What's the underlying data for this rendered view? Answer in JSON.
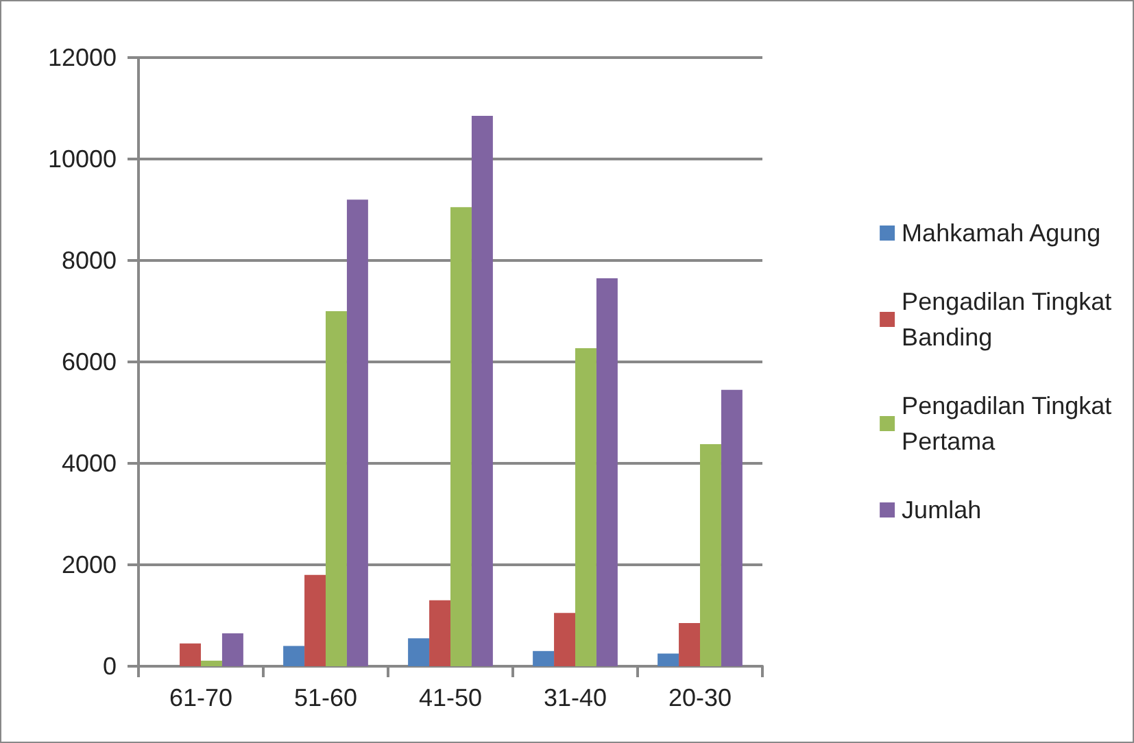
{
  "chart_data": {
    "type": "bar",
    "categories": [
      "61-70",
      "51-60",
      "41-50",
      "31-40",
      "20-30"
    ],
    "series": [
      {
        "name": "Mahkamah Agung",
        "color": "#4f81bd",
        "values": [
          0,
          400,
          550,
          300,
          250
        ]
      },
      {
        "name": "Pengadilan Tingkat Banding",
        "color": "#c0504d",
        "values": [
          450,
          1800,
          1300,
          1050,
          850
        ]
      },
      {
        "name": "Pengadilan Tingkat Pertama",
        "color": "#9bbb59",
        "values": [
          110,
          7000,
          9050,
          6270,
          4380
        ]
      },
      {
        "name": "Jumlah",
        "color": "#8064a2",
        "values": [
          650,
          9200,
          10850,
          7650,
          5450
        ]
      }
    ],
    "ylim": [
      0,
      12000
    ],
    "yticks": [
      0,
      2000,
      4000,
      6000,
      8000,
      10000,
      12000
    ],
    "grid": "y",
    "legend": "right"
  }
}
